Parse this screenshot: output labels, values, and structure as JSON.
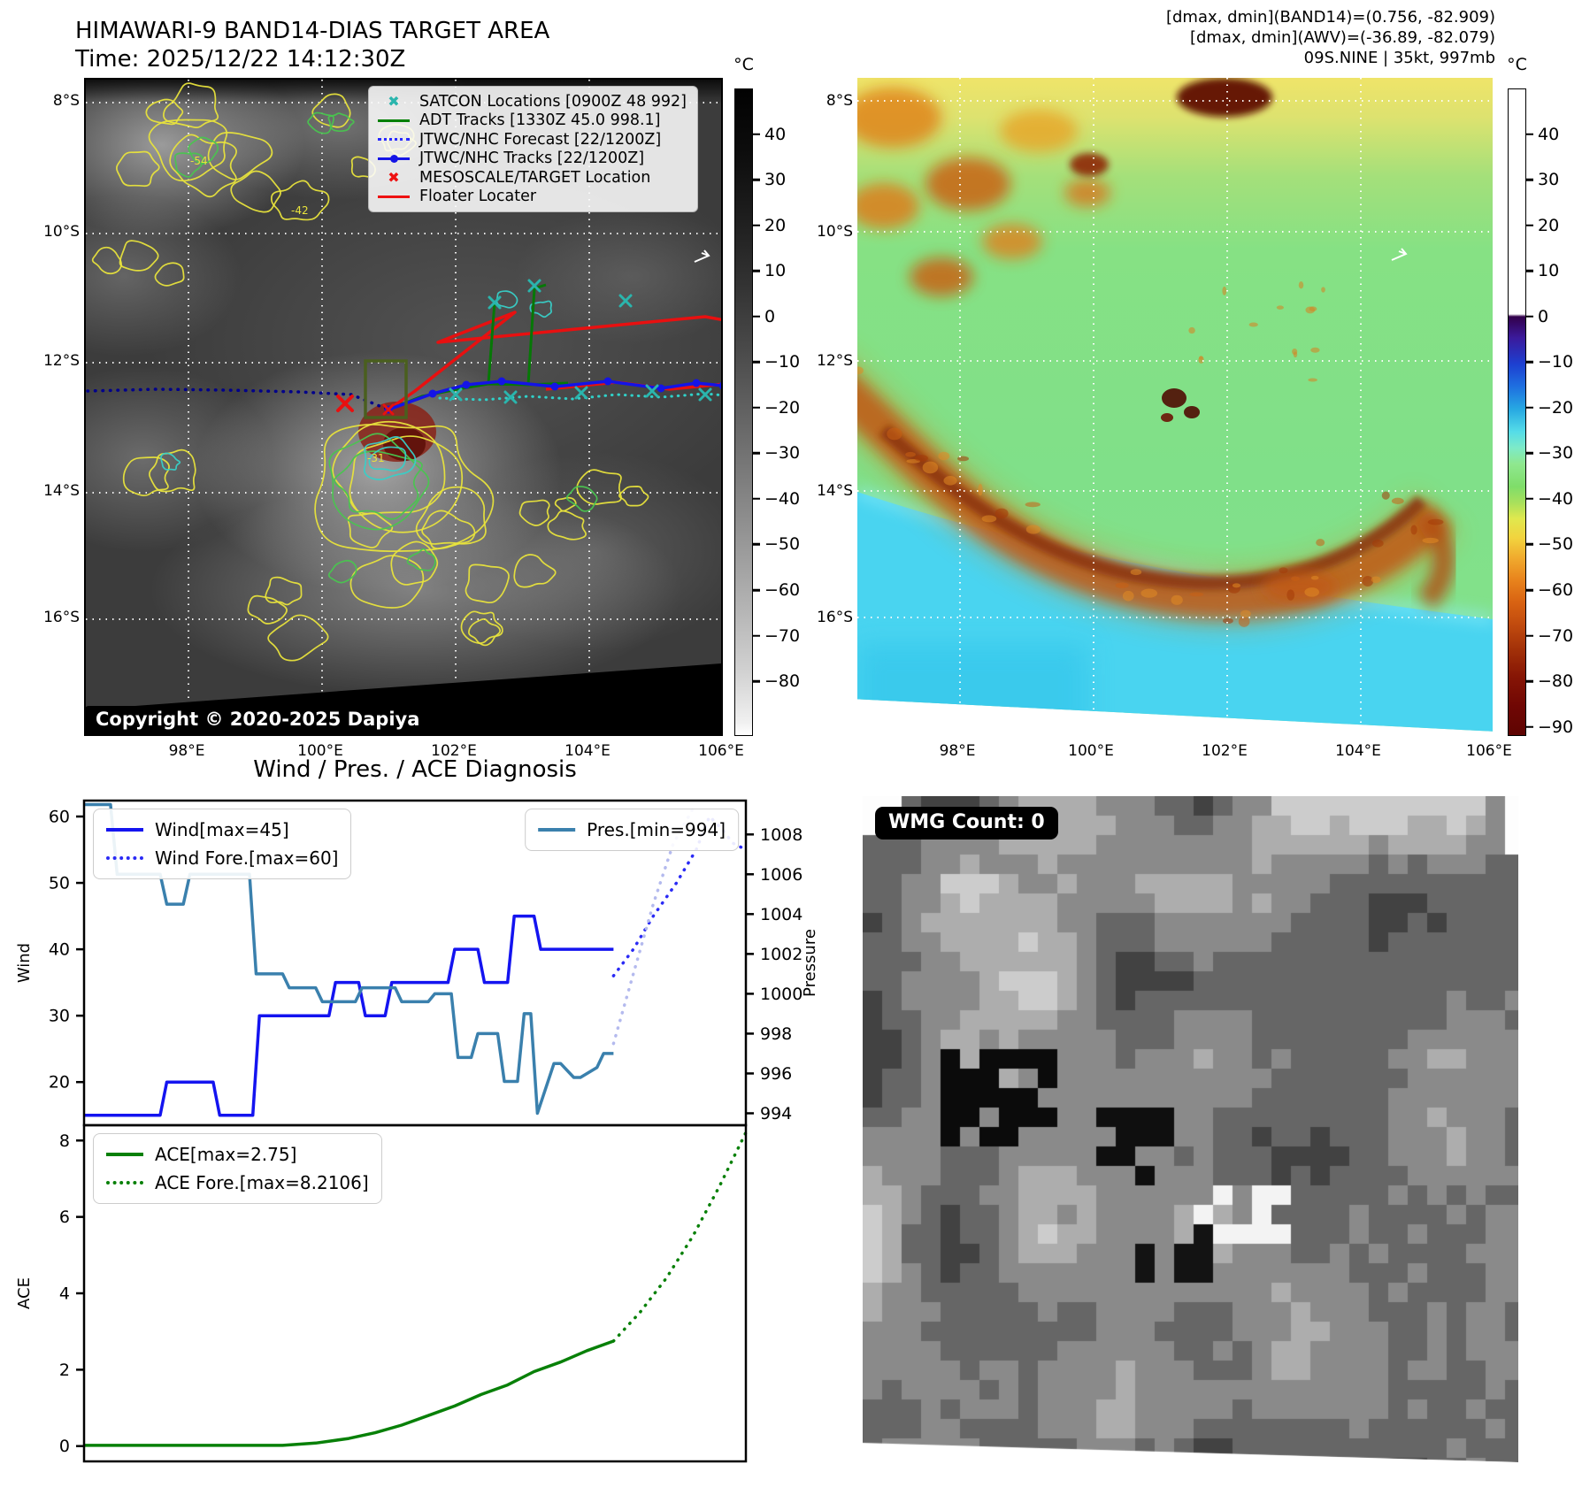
{
  "band14": {
    "title": "HIMAWARI-9 BAND14-DIAS TARGET AREA",
    "time": "Time: 2025/12/22 14:12:30Z",
    "copyright": "Copyright © 2020-2025 Dapiya",
    "legend": [
      {
        "label": "SATCON Locations [0900Z 48 992]",
        "marker": "x-cross",
        "color": "#2ab5ad"
      },
      {
        "label": "ADT Tracks [1330Z 45.0 998.1]",
        "marker": "solid-line",
        "color": "#008000"
      },
      {
        "label": "JTWC/NHC Forecast [22/1200Z]",
        "marker": "dotted-line",
        "color": "#2929ff"
      },
      {
        "label": "JTWC/NHC Tracks [22/1200Z]",
        "marker": "line-dot",
        "color": "#1414e6"
      },
      {
        "label": "MESOSCALE/TARGET Location",
        "marker": "x-cross",
        "color": "#ee1111"
      },
      {
        "label": "Floater Locater",
        "marker": "solid-line",
        "color": "#ee1111"
      }
    ],
    "contour_labels": [
      "-54",
      "-42",
      "-31"
    ],
    "x_ticks": [
      "98°E",
      "100°E",
      "102°E",
      "104°E",
      "106°E"
    ],
    "y_ticks": [
      "8°S",
      "10°S",
      "12°S",
      "14°S",
      "16°S"
    ],
    "colorbar": {
      "unit": "°C",
      "ticks": [
        "40",
        "30",
        "20",
        "10",
        "0",
        "−10",
        "−20",
        "−30",
        "−40",
        "−50",
        "−60",
        "−70",
        "−80"
      ]
    }
  },
  "awv": {
    "info_lines": [
      "[dmax, dmin](BAND14)=(0.756, -82.909)",
      "[dmax, dmin](AWV)=(-36.89, -82.079)",
      "09S.NINE | 35kt, 997mb"
    ],
    "x_ticks": [
      "98°E",
      "100°E",
      "102°E",
      "104°E",
      "106°E"
    ],
    "y_ticks": [
      "8°S",
      "10°S",
      "12°S",
      "14°S",
      "16°S"
    ],
    "colorbar": {
      "unit": "°C",
      "ticks": [
        "40",
        "30",
        "20",
        "10",
        "0",
        "−10",
        "−20",
        "−30",
        "−40",
        "−50",
        "−60",
        "−70",
        "−80",
        "−90"
      ]
    }
  },
  "wmg": {
    "label": "WMG Count: 0"
  },
  "chart_data": [
    {
      "id": "wind-pres",
      "type": "line",
      "title": "Wind / Pres. / ACE Diagnosis",
      "ylabel_left": "Wind",
      "ylabel_right": "Pressure",
      "ylim_left": [
        13.5,
        62.4
      ],
      "yticks_left": [
        20,
        30,
        40,
        50,
        60
      ],
      "ylim_right": [
        993.4,
        1009.7
      ],
      "yticks_right": [
        994,
        996,
        998,
        1000,
        1002,
        1004,
        1006,
        1008
      ],
      "xlim": [
        0,
        1
      ],
      "legend_position": {
        "nw": true,
        "ne": true
      },
      "series": [
        {
          "name": "Wind[max=45]",
          "legend_box": "nw",
          "axis": "left",
          "style": "solid",
          "color": "#1414f0",
          "x": [
            0,
            0.115,
            0.125,
            0.195,
            0.205,
            0.255,
            0.265,
            0.37,
            0.38,
            0.415,
            0.425,
            0.455,
            0.465,
            0.55,
            0.56,
            0.595,
            0.605,
            0.64,
            0.65,
            0.68,
            0.69,
            0.73,
            0.74,
            0.8
          ],
          "y": [
            15,
            15,
            20,
            20,
            15,
            15,
            30,
            30,
            35,
            35,
            30,
            30,
            35,
            35,
            40,
            40,
            35,
            35,
            45,
            45,
            40,
            40,
            40,
            40
          ]
        },
        {
          "name": "Wind Fore.[max=60]",
          "legend_box": "nw",
          "axis": "left",
          "style": "dotted",
          "color": "#2a2af5",
          "x": [
            0.8,
            0.83,
            0.86,
            0.895,
            0.925,
            0.945,
            0.965,
            0.98,
            1.0
          ],
          "y": [
            36,
            40,
            45,
            50,
            55,
            60,
            58,
            56,
            55
          ]
        },
        {
          "name": "Pres.[min=994]",
          "legend_box": "ne",
          "axis": "right",
          "style": "solid",
          "color": "#3a80ad",
          "x": [
            0,
            0.04,
            0.05,
            0.115,
            0.125,
            0.15,
            0.16,
            0.25,
            0.26,
            0.3,
            0.31,
            0.35,
            0.36,
            0.41,
            0.42,
            0.47,
            0.48,
            0.52,
            0.53,
            0.555,
            0.565,
            0.585,
            0.595,
            0.625,
            0.635,
            0.655,
            0.665,
            0.675,
            0.685,
            0.71,
            0.72,
            0.74,
            0.75,
            0.775,
            0.785,
            0.8
          ],
          "y": [
            1009.5,
            1009.5,
            1006,
            1006,
            1004.5,
            1004.5,
            1006,
            1006,
            1001,
            1001,
            1000.3,
            1000.3,
            999.6,
            999.6,
            1000.3,
            1000.3,
            999.6,
            999.6,
            1000,
            1000,
            996.8,
            996.8,
            998,
            998,
            995.6,
            995.6,
            999,
            999,
            994,
            996.5,
            996.5,
            995.8,
            995.8,
            996.3,
            997,
            997
          ]
        },
        {
          "name": "Pres. Forecast",
          "legend_box": null,
          "axis": "right",
          "style": "dotted",
          "color": "#b4baee",
          "x": [
            0.8,
            0.83,
            0.86,
            0.89,
            0.92
          ],
          "y": [
            997.5,
            1001,
            1004.5,
            1007.5,
            1009.3
          ]
        }
      ]
    },
    {
      "id": "ace",
      "type": "line",
      "ylabel_left": "ACE",
      "ylim_left": [
        -0.4,
        8.4
      ],
      "yticks_left": [
        0,
        2,
        4,
        6,
        8
      ],
      "xlim": [
        0,
        1
      ],
      "series": [
        {
          "name": "ACE[max=2.75]",
          "legend_box": "nw",
          "axis": "left",
          "style": "solid",
          "color": "#088008",
          "x": [
            0,
            0.3,
            0.35,
            0.4,
            0.44,
            0.48,
            0.52,
            0.56,
            0.6,
            0.64,
            0.68,
            0.72,
            0.76,
            0.8
          ],
          "y": [
            0.02,
            0.02,
            0.08,
            0.2,
            0.35,
            0.55,
            0.8,
            1.05,
            1.35,
            1.6,
            1.95,
            2.2,
            2.5,
            2.75
          ]
        },
        {
          "name": "ACE Fore.[max=8.2106]",
          "legend_box": "nw",
          "axis": "left",
          "style": "dotted",
          "color": "#088008",
          "x": [
            0.8,
            0.84,
            0.88,
            0.92,
            0.96,
            1.0
          ],
          "y": [
            2.75,
            3.5,
            4.4,
            5.5,
            6.8,
            8.21
          ]
        }
      ]
    }
  ]
}
